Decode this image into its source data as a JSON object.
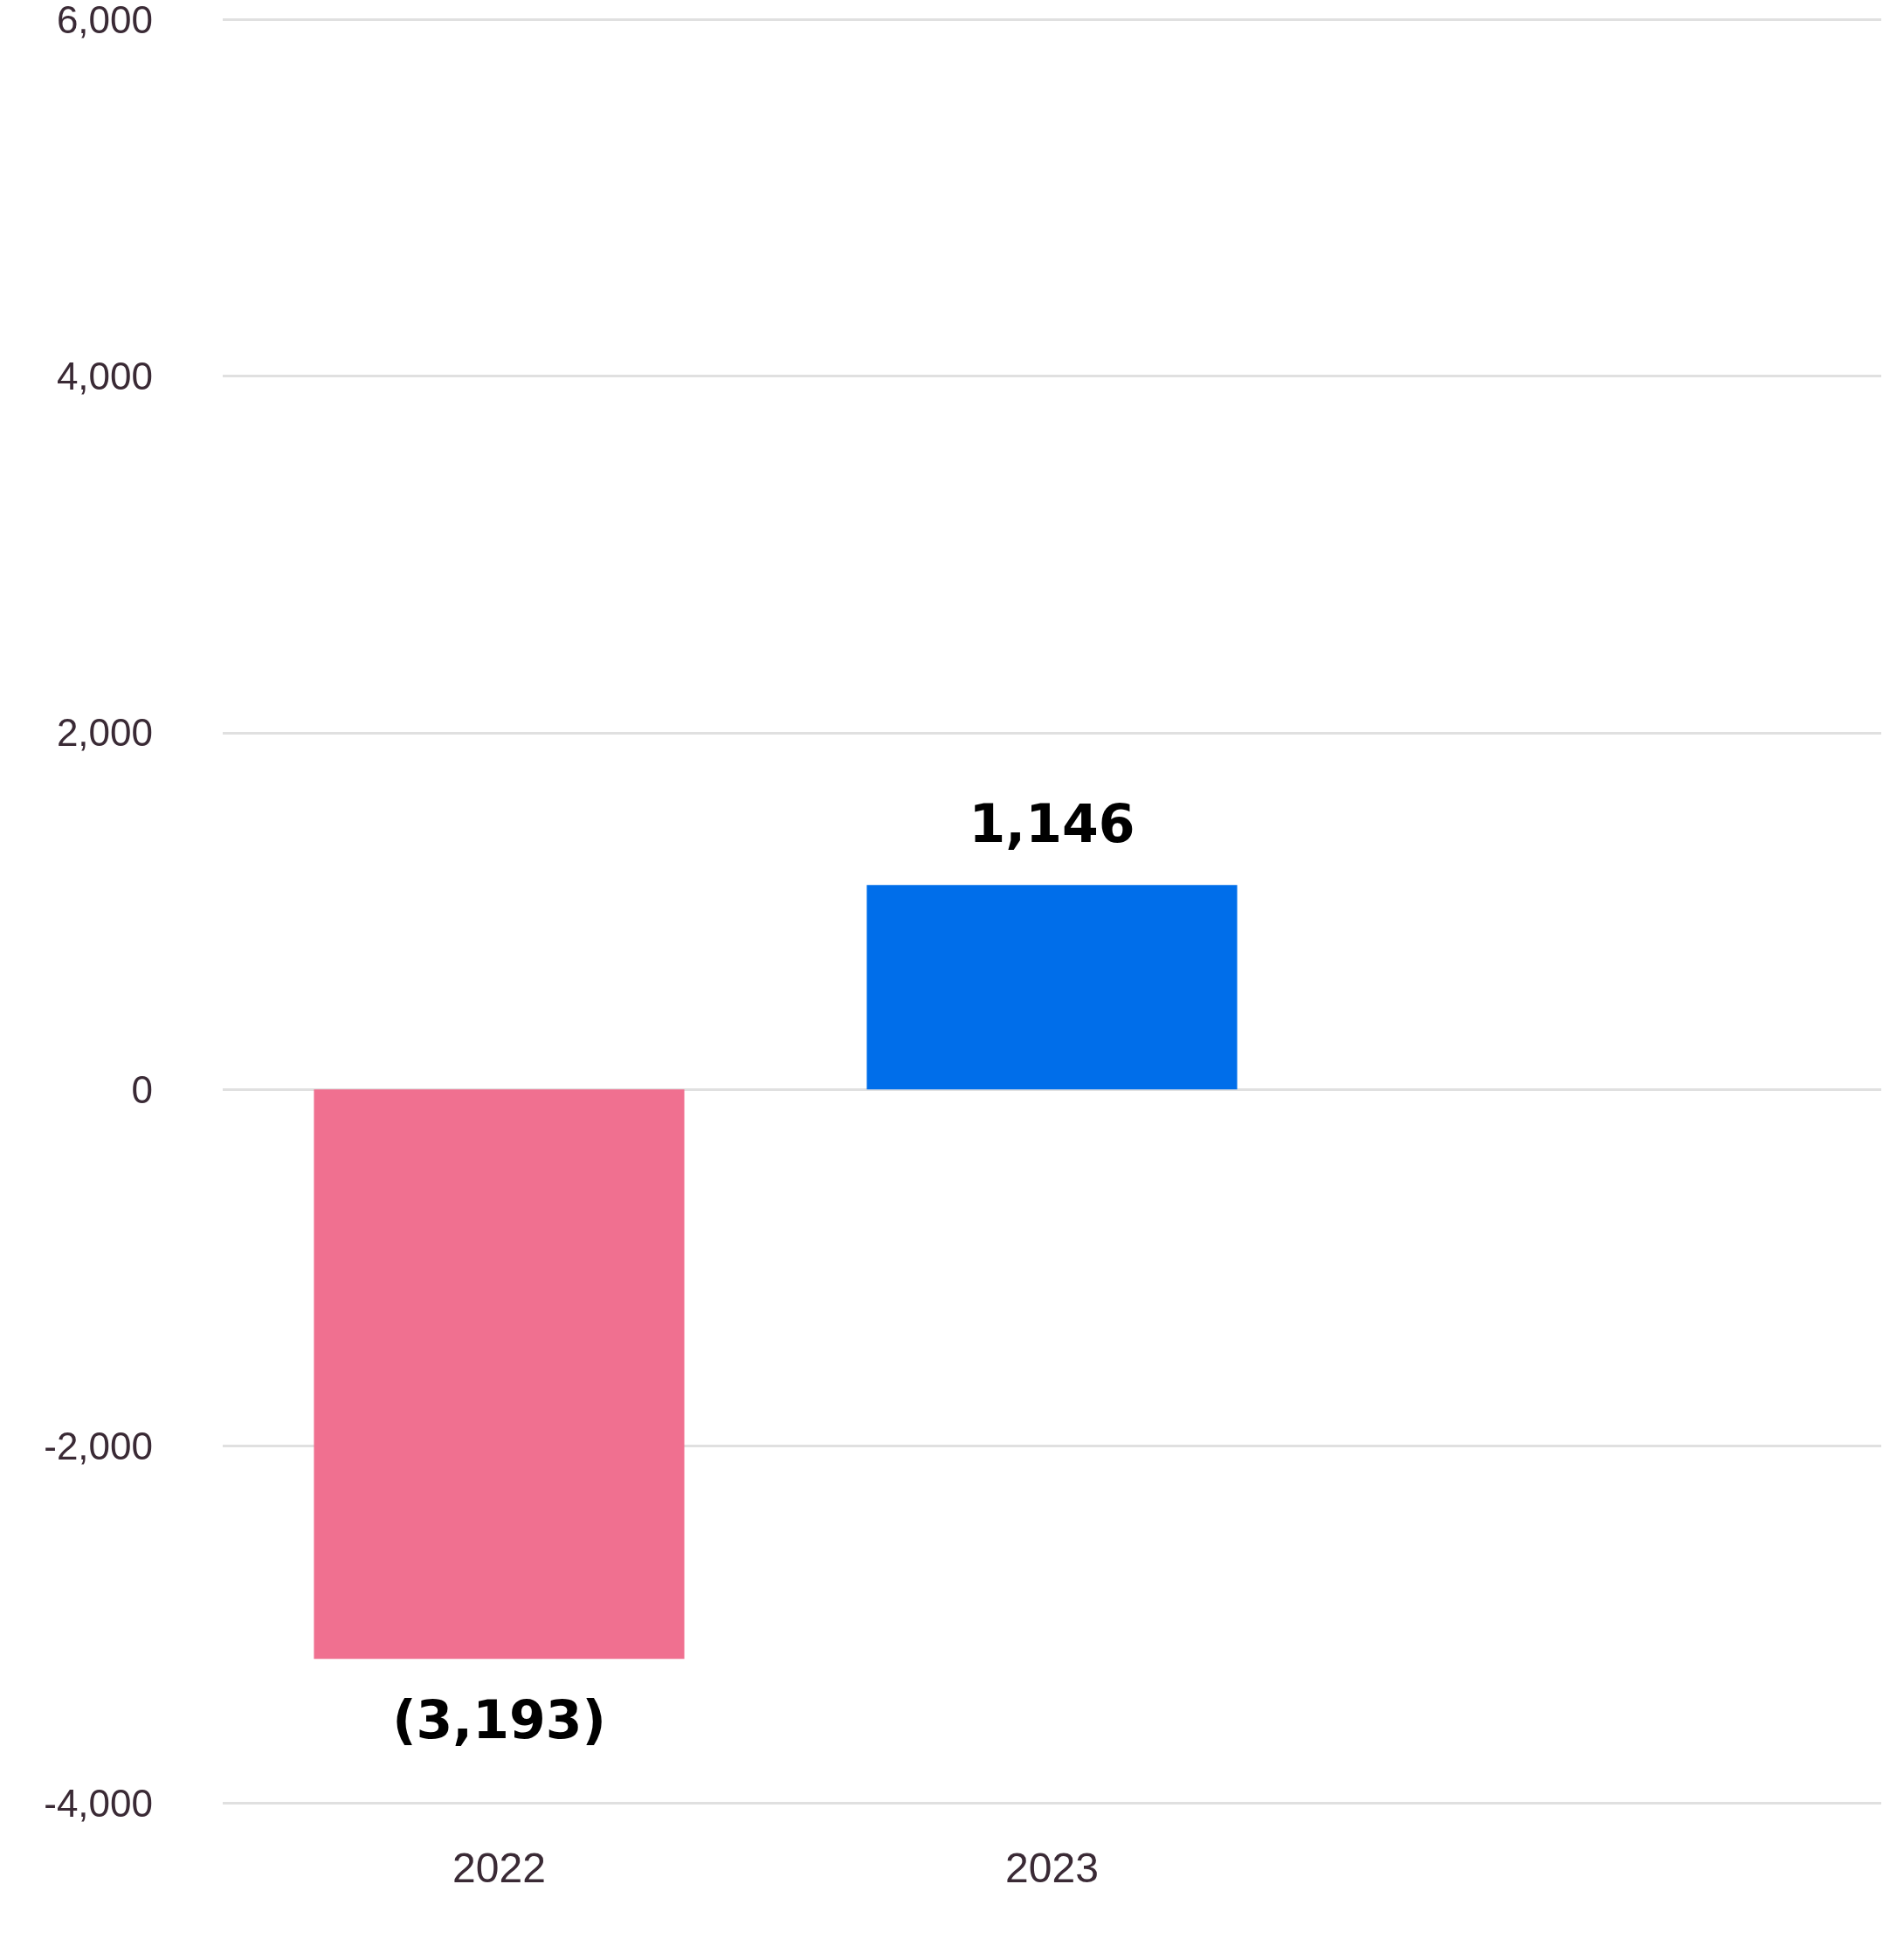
{
  "chart_data": {
    "type": "bar",
    "categories": [
      "2022",
      "2023",
      null
    ],
    "values": [
      -3193,
      1146,
      null
    ],
    "colors": [
      "#f07090",
      "#006eea",
      "#006eea"
    ],
    "value_labels": [
      "(3,193)",
      "1,146",
      null
    ],
    "ylim": [
      -4000,
      6000
    ],
    "yticks": [
      {
        "value": -4000,
        "label": "-4,000"
      },
      {
        "value": -2000,
        "label": "-2,000"
      },
      0,
      {
        "value": 2000,
        "label": "2,000"
      },
      {
        "value": 4000,
        "label": "4,000"
      },
      {
        "value": 6000,
        "label": "6,000"
      }
    ],
    "grid": "y"
  }
}
